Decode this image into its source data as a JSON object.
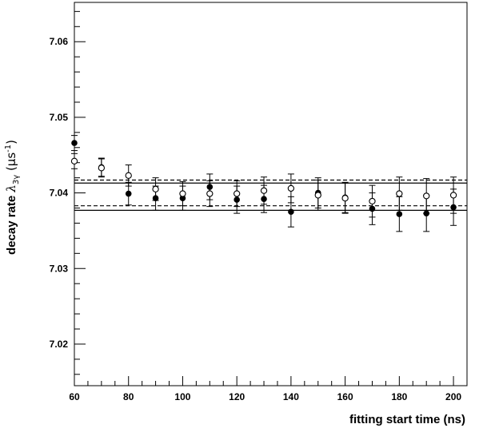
{
  "chart_data": {
    "type": "scatter",
    "title": "",
    "xlabel": "fitting start time (ns)",
    "ylabel": {
      "prefix": "decay rate ",
      "symbol": "λ",
      "subscript": "3γ",
      "unit_open": " (μs",
      "unit_exp": "-1",
      "unit_close": ")"
    },
    "xlim": [
      60,
      205
    ],
    "ylim": [
      7.0145,
      7.0652
    ],
    "x_ticks": [
      60,
      80,
      100,
      120,
      140,
      160,
      180,
      200
    ],
    "x_tick_labels": [
      "60",
      "80",
      "100",
      "120",
      "140",
      "160",
      "180",
      "200"
    ],
    "y_ticks": [
      7.02,
      7.03,
      7.04,
      7.05,
      7.06
    ],
    "y_tick_labels": [
      "7.02",
      "7.03",
      "7.04",
      "7.05",
      "7.06"
    ],
    "grid": false,
    "legend": "none",
    "series": [
      {
        "marker": "filled-circle",
        "points": [
          {
            "x": 60,
            "y": 7.0466,
            "err": 0.001
          },
          {
            "x": 70,
            "y": 7.0434,
            "err": 0.0012
          },
          {
            "x": 80,
            "y": 7.0399,
            "err": 0.0015
          },
          {
            "x": 90,
            "y": 7.0393,
            "err": 0.0016
          },
          {
            "x": 100,
            "y": 7.0393,
            "err": 0.0016
          },
          {
            "x": 110,
            "y": 7.0408,
            "err": 0.0017
          },
          {
            "x": 120,
            "y": 7.0391,
            "err": 0.0018
          },
          {
            "x": 130,
            "y": 7.0392,
            "err": 0.0018
          },
          {
            "x": 140,
            "y": 7.0375,
            "err": 0.002
          },
          {
            "x": 150,
            "y": 7.04,
            "err": 0.002
          },
          {
            "x": 160,
            "y": 7.0394,
            "err": 0.002
          },
          {
            "x": 170,
            "y": 7.0379,
            "err": 0.0021
          },
          {
            "x": 180,
            "y": 7.0372,
            "err": 0.0023
          },
          {
            "x": 190,
            "y": 7.0373,
            "err": 0.0024
          },
          {
            "x": 200,
            "y": 7.0381,
            "err": 0.0024
          }
        ]
      },
      {
        "marker": "open-circle",
        "points": [
          {
            "x": 60,
            "y": 7.0442,
            "err": 0.001
          },
          {
            "x": 70,
            "y": 7.0433,
            "err": 0.0012
          },
          {
            "x": 80,
            "y": 7.0423,
            "err": 0.0014
          },
          {
            "x": 90,
            "y": 7.0405,
            "err": 0.0015
          },
          {
            "x": 100,
            "y": 7.0399,
            "err": 0.0016
          },
          {
            "x": 110,
            "y": 7.0399,
            "err": 0.0017
          },
          {
            "x": 120,
            "y": 7.0399,
            "err": 0.0017
          },
          {
            "x": 130,
            "y": 7.0403,
            "err": 0.0018
          },
          {
            "x": 140,
            "y": 7.0406,
            "err": 0.0019
          },
          {
            "x": 150,
            "y": 7.0397,
            "err": 0.002
          },
          {
            "x": 160,
            "y": 7.0393,
            "err": 0.002
          },
          {
            "x": 170,
            "y": 7.0389,
            "err": 0.0021
          },
          {
            "x": 180,
            "y": 7.0399,
            "err": 0.0022
          },
          {
            "x": 190,
            "y": 7.0396,
            "err": 0.0023
          },
          {
            "x": 200,
            "y": 7.0397,
            "err": 0.0024
          }
        ]
      }
    ],
    "reference_lines": [
      {
        "style": "solid",
        "y": 7.0413
      },
      {
        "style": "solid",
        "y": 7.0377
      },
      {
        "style": "dashed",
        "y": 7.0417
      },
      {
        "style": "dashed",
        "y": 7.0383
      }
    ]
  }
}
